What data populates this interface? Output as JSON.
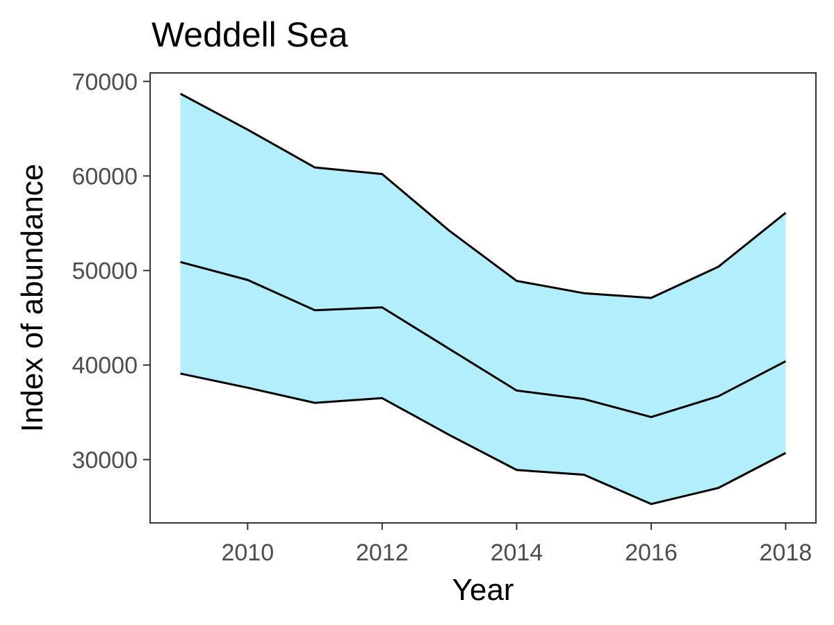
{
  "chart_data": {
    "type": "area",
    "title": "Weddell Sea",
    "xlabel": "Year",
    "ylabel": "Index of abundance",
    "x": [
      2009,
      2010,
      2011,
      2012,
      2013,
      2014,
      2015,
      2016,
      2017,
      2018
    ],
    "xlim": [
      2008.55,
      2018.45
    ],
    "ylim": [
      23300,
      70900
    ],
    "x_ticks": [
      2010,
      2012,
      2014,
      2016,
      2018
    ],
    "y_ticks": [
      30000,
      40000,
      50000,
      60000,
      70000
    ],
    "grid": false,
    "legend": "none",
    "band_color": "#b3eefd",
    "line_color": "#000000",
    "series": [
      {
        "values": [
          68700,
          64900,
          60900,
          60200,
          54200,
          48900,
          47600,
          47100,
          50400,
          56100
        ]
      },
      {
        "values": [
          50900,
          49000,
          45800,
          46100,
          41700,
          37300,
          36400,
          34500,
          36700,
          40400
        ]
      },
      {
        "values": [
          39100,
          37600,
          36000,
          36500,
          32600,
          28900,
          28400,
          25300,
          27000,
          30700
        ]
      }
    ]
  }
}
